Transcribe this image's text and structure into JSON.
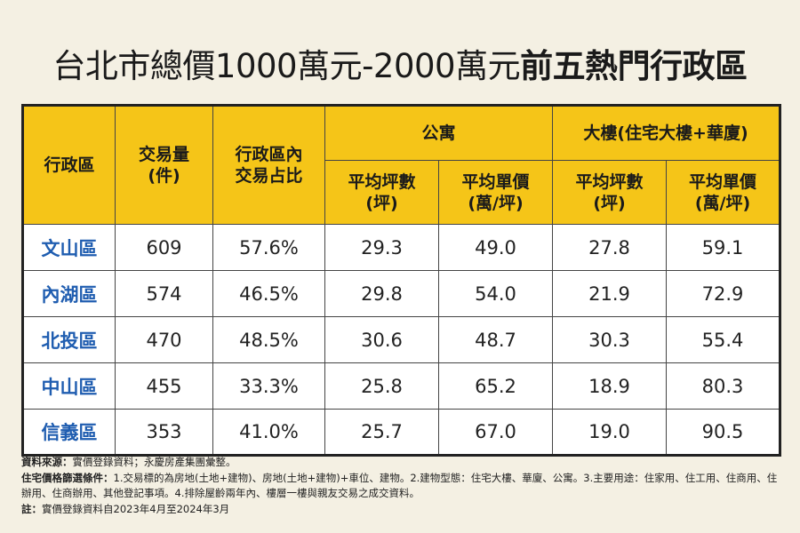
{
  "title": {
    "normal": "台北市總價1000萬元-2000萬元",
    "bold": "前五熱門行政區"
  },
  "table": {
    "headers": {
      "district": "行政區",
      "volume": "交易量\n(件)",
      "share": "行政區內\n交易占比",
      "apartment_group": "公寓",
      "building_group": "大樓(住宅大樓+華廈)",
      "apt_avg_size": "平均坪數\n(坪)",
      "apt_avg_price": "平均單價\n(萬/坪)",
      "bld_avg_size": "平均坪數\n(坪)",
      "bld_avg_price": "平均單價\n(萬/坪)"
    },
    "rows": [
      {
        "district": "文山區",
        "volume": "609",
        "share": "57.6%",
        "apt_size": "29.3",
        "apt_price": "49.0",
        "bld_size": "27.8",
        "bld_price": "59.1"
      },
      {
        "district": "內湖區",
        "volume": "574",
        "share": "46.5%",
        "apt_size": "29.8",
        "apt_price": "54.0",
        "bld_size": "21.9",
        "bld_price": "72.9"
      },
      {
        "district": "北投區",
        "volume": "470",
        "share": "48.5%",
        "apt_size": "30.6",
        "apt_price": "48.7",
        "bld_size": "30.3",
        "bld_price": "55.4"
      },
      {
        "district": "中山區",
        "volume": "455",
        "share": "33.3%",
        "apt_size": "25.8",
        "apt_price": "65.2",
        "bld_size": "18.9",
        "bld_price": "80.3"
      },
      {
        "district": "信義區",
        "volume": "353",
        "share": "41.0%",
        "apt_size": "25.7",
        "apt_price": "67.0",
        "bld_size": "19.0",
        "bld_price": "90.5"
      }
    ]
  },
  "notes": {
    "source_label": "資料來源：",
    "source_text": "實價登錄資料；永慶房產集團彙整。",
    "criteria_label": "住宅價格篩選條件：",
    "criteria_text": "1.交易標的為房地(土地+建物)、房地(土地+建物)+車位、建物。2.建物型態：住宅大樓、華廈、公寓。3.主要用途：住家用、住工用、住商用、住辦用、住商辦用、其他登記事項。4.排除屋齡兩年內、樓層一樓與親友交易之成交資料。",
    "note_label": "註：",
    "note_text": "實價登錄資料自2023年4月至2024年3月"
  }
}
